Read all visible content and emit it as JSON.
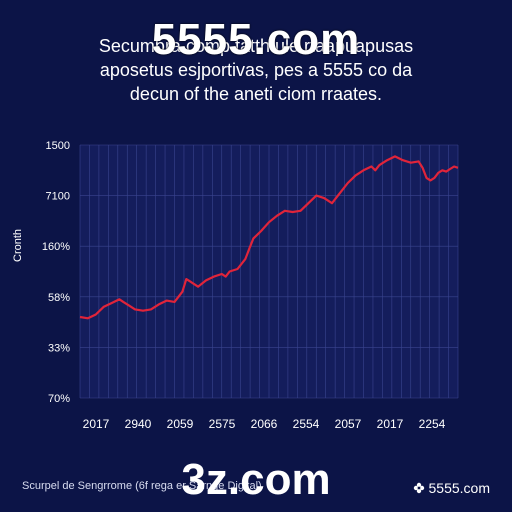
{
  "headline": "5555.com",
  "subtitle_lines": [
    "Secumbra comp tatth ule rtaapuapusas",
    "aposetus esjportivas, pes a 5555 co da",
    "decun of the aneti ciom rraates."
  ],
  "footer": {
    "source": "Scurpel de Sengrrome (6f rega er Sarnge Digital)",
    "big_text": "3z.com",
    "brand": "5555.com"
  },
  "colors": {
    "background": "#0c1447",
    "plot_bg": "#141d5c",
    "grid": "#3a4590",
    "line": "#e0243a"
  },
  "icons": {
    "brand_logo": "flower-logo-icon"
  },
  "chart_data": {
    "type": "line",
    "title": "",
    "xlabel": "",
    "ylabel": "Cronth",
    "ytick_labels": [
      "1500",
      "7100",
      "160%",
      "58%",
      "33%",
      "70%"
    ],
    "xtick_labels": [
      "2017",
      "2940",
      "2059",
      "2575",
      "2066",
      "2554",
      "2057",
      "2017",
      "2254"
    ],
    "ylim": [
      0,
      100
    ],
    "grid": true,
    "legend": "none",
    "series": [
      {
        "values": [
          [
            0,
            32
          ],
          [
            2,
            31.5
          ],
          [
            4,
            33
          ],
          [
            6,
            36
          ],
          [
            8,
            37.5
          ],
          [
            10,
            39
          ],
          [
            11,
            38
          ],
          [
            12,
            37
          ],
          [
            14,
            35
          ],
          [
            16,
            34.5
          ],
          [
            18,
            35
          ],
          [
            20,
            37
          ],
          [
            22,
            38.5
          ],
          [
            24,
            38
          ],
          [
            26,
            42
          ],
          [
            27,
            47
          ],
          [
            28,
            46
          ],
          [
            30,
            44
          ],
          [
            32,
            46.5
          ],
          [
            34,
            48
          ],
          [
            36,
            49
          ],
          [
            37,
            48
          ],
          [
            38,
            50
          ],
          [
            40,
            51
          ],
          [
            42,
            55
          ],
          [
            43,
            59
          ],
          [
            44,
            63
          ],
          [
            46,
            66
          ],
          [
            48,
            69.5
          ],
          [
            50,
            72
          ],
          [
            52,
            74
          ],
          [
            54,
            73.5
          ],
          [
            56,
            74
          ],
          [
            58,
            77
          ],
          [
            60,
            80
          ],
          [
            62,
            79
          ],
          [
            64,
            77
          ],
          [
            66,
            81
          ],
          [
            68,
            85
          ],
          [
            70,
            88
          ],
          [
            72,
            90
          ],
          [
            74,
            91.5
          ],
          [
            75,
            90
          ],
          [
            76,
            92
          ],
          [
            78,
            94
          ],
          [
            80,
            95.5
          ],
          [
            82,
            94
          ],
          [
            84,
            93
          ],
          [
            86,
            93.5
          ],
          [
            87,
            91
          ],
          [
            88,
            87
          ],
          [
            89,
            86
          ],
          [
            90,
            87
          ],
          [
            91,
            89
          ],
          [
            92,
            90
          ],
          [
            93,
            89.5
          ],
          [
            94,
            90.5
          ],
          [
            95,
            91.5
          ],
          [
            96,
            91
          ]
        ]
      }
    ]
  }
}
